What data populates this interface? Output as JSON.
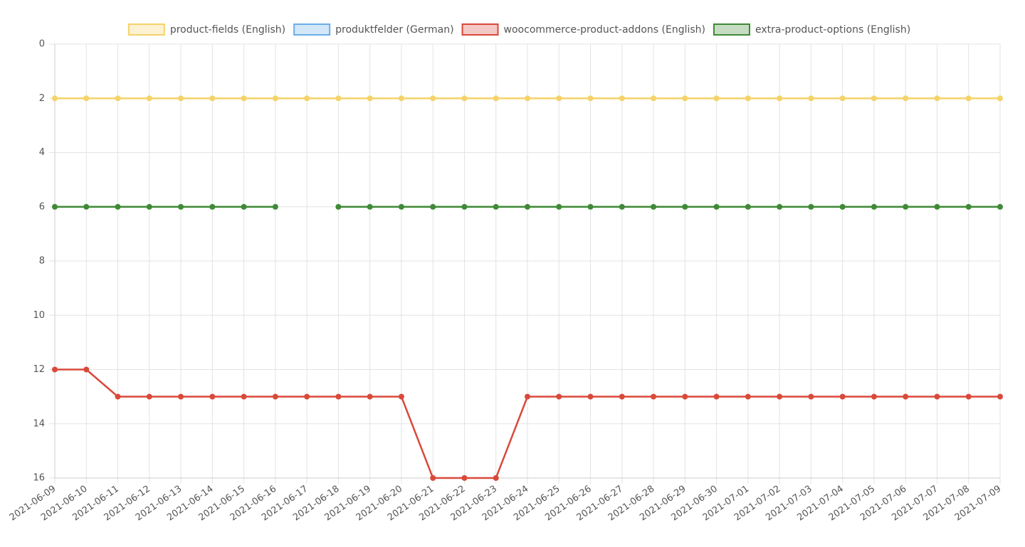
{
  "chart_data": {
    "type": "line",
    "categories": [
      "2021-06-09",
      "2021-06-10",
      "2021-06-11",
      "2021-06-12",
      "2021-06-13",
      "2021-06-14",
      "2021-06-15",
      "2021-06-16",
      "2021-06-17",
      "2021-06-18",
      "2021-06-19",
      "2021-06-20",
      "2021-06-21",
      "2021-06-22",
      "2021-06-23",
      "2021-06-24",
      "2021-06-25",
      "2021-06-26",
      "2021-06-27",
      "2021-06-28",
      "2021-06-29",
      "2021-06-30",
      "2021-07-01",
      "2021-07-02",
      "2021-07-03",
      "2021-07-04",
      "2021-07-05",
      "2021-07-06",
      "2021-07-07",
      "2021-07-08",
      "2021-07-09"
    ],
    "series": [
      {
        "name": "product-fields (English)",
        "color": "#f5d36a",
        "values": [
          2,
          2,
          2,
          2,
          2,
          2,
          2,
          2,
          2,
          2,
          2,
          2,
          2,
          2,
          2,
          2,
          2,
          2,
          2,
          2,
          2,
          2,
          2,
          2,
          2,
          2,
          2,
          2,
          2,
          2,
          2
        ]
      },
      {
        "name": "produktfelder (German)",
        "color": "#6aaee8",
        "values": [
          null,
          null,
          null,
          null,
          null,
          null,
          null,
          null,
          null,
          null,
          null,
          null,
          null,
          null,
          null,
          null,
          null,
          null,
          null,
          null,
          null,
          null,
          null,
          null,
          null,
          null,
          null,
          null,
          null,
          null,
          null
        ]
      },
      {
        "name": "woocommerce-product-addons (English)",
        "color": "#d9493a",
        "values": [
          12,
          12,
          13,
          13,
          13,
          13,
          13,
          13,
          13,
          13,
          13,
          13,
          16,
          16,
          16,
          13,
          13,
          13,
          13,
          13,
          13,
          13,
          13,
          13,
          13,
          13,
          13,
          13,
          13,
          13,
          13
        ]
      },
      {
        "name": "extra-product-options (English)",
        "color": "#3f8a36",
        "values": [
          6,
          6,
          6,
          6,
          6,
          6,
          6,
          6,
          null,
          6,
          6,
          6,
          6,
          6,
          6,
          6,
          6,
          6,
          6,
          6,
          6,
          6,
          6,
          6,
          6,
          6,
          6,
          6,
          6,
          6,
          6
        ]
      }
    ],
    "ylim": [
      0,
      16
    ],
    "yticks": [
      0,
      2,
      4,
      6,
      8,
      10,
      12,
      14,
      16
    ],
    "y_reversed": true,
    "grid": true,
    "legend": "top"
  }
}
